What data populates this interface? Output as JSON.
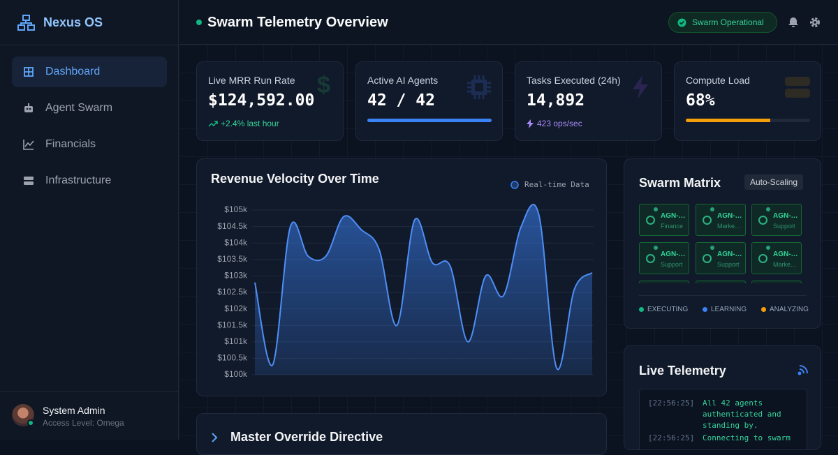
{
  "sidebar": {
    "brand": "Nexus OS",
    "nav": [
      "Dashboard",
      "Agent Swarm",
      "Financials",
      "Infrastructure"
    ],
    "user": {
      "name": "System Admin",
      "role": "Access Level: Omega"
    }
  },
  "header": {
    "title": "Swarm Telemetry Overview",
    "status": "Swarm Operational"
  },
  "stats": [
    {
      "label": "Live MRR Run Rate",
      "value": "$124,592.00",
      "note": "+2.4% last hour"
    },
    {
      "label": "Active AI Agents",
      "value": "42 / 42",
      "progress": 100
    },
    {
      "label": "Tasks Executed (24h)",
      "value": "14,892",
      "note": "423 ops/sec"
    },
    {
      "label": "Compute Load",
      "value": "68%",
      "progress": 68
    }
  ],
  "chart_data": {
    "type": "area",
    "title": "Revenue Velocity Over Time",
    "legend": "Real-time Data",
    "color": "#4f8ef7",
    "values": [
      102.8,
      100.3,
      104.5,
      103.6,
      103.6,
      104.8,
      104.4,
      103.8,
      101.5,
      104.7,
      103.4,
      103.3,
      101.0,
      103.0,
      102.4,
      104.5,
      104.85,
      100.2,
      102.6,
      103.1
    ],
    "ylim": [
      100,
      105
    ],
    "yticks": [
      {
        "value": 100,
        "label": "$100k"
      },
      {
        "value": 100.5,
        "label": "$100.5k"
      },
      {
        "value": 101,
        "label": "$101k"
      },
      {
        "value": 101.5,
        "label": "$101.5k"
      },
      {
        "value": 102,
        "label": "$102k"
      },
      {
        "value": 102.5,
        "label": "$102.5k"
      },
      {
        "value": 103,
        "label": "$103k"
      },
      {
        "value": 103.5,
        "label": "$103.5k"
      },
      {
        "value": 104,
        "label": "$104k"
      },
      {
        "value": 104.5,
        "label": "$104.5k"
      },
      {
        "value": 105,
        "label": "$105k"
      }
    ],
    "grid": true
  },
  "matrix": {
    "title": "Swarm Matrix",
    "badge": "Auto-Scaling",
    "agents": [
      {
        "id": "AGN-…",
        "role": "Finance"
      },
      {
        "id": "AGN-…",
        "role": "Marke…"
      },
      {
        "id": "AGN-…",
        "role": "Support"
      },
      {
        "id": "AGN-…",
        "role": "Support"
      },
      {
        "id": "AGN-…",
        "role": "Support"
      },
      {
        "id": "AGN-…",
        "role": "Marke…"
      }
    ],
    "legend": [
      {
        "label": "EXECUTING",
        "color": "#10b981"
      },
      {
        "label": "LEARNING",
        "color": "#3b82f6"
      },
      {
        "label": "ANALYZING",
        "color": "#f59e0b"
      }
    ]
  },
  "telemetry": {
    "title": "Live Telemetry",
    "log": [
      {
        "time": "[22:56:25]",
        "text": "All 42 agents authenticated and standing by."
      },
      {
        "time": "[22:56:25]",
        "text": "Connecting to swarm"
      }
    ]
  },
  "directive": {
    "title": "Master Override Directive"
  }
}
